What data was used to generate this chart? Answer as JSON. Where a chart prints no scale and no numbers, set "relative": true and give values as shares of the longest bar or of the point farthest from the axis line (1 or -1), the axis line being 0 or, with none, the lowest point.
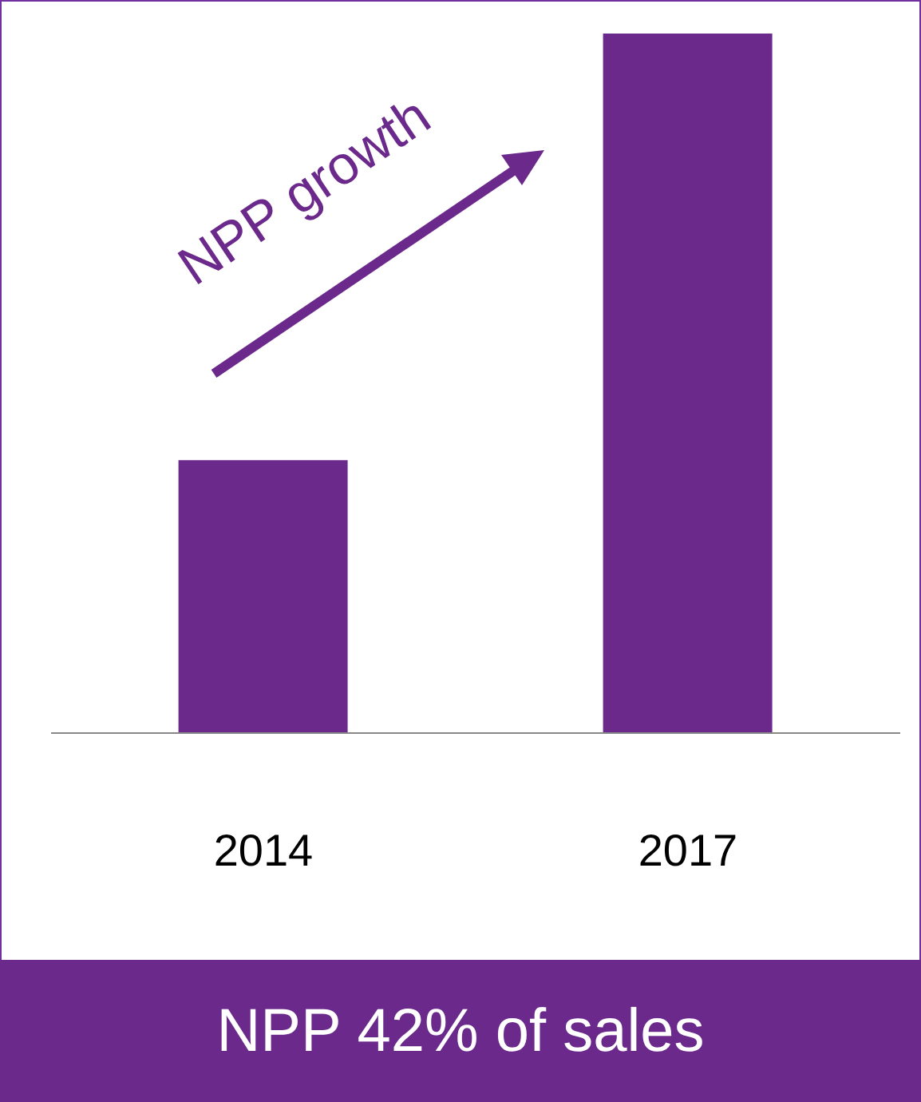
{
  "chart_data": {
    "type": "bar",
    "categories": [
      "2014",
      "2017"
    ],
    "values": [
      0.39,
      1
    ],
    "color": "#6b2a8b",
    "relative": true,
    "grid": false,
    "legend": false,
    "annotations": [
      "NPP growth",
      "NPP 42% of sales"
    ]
  }
}
